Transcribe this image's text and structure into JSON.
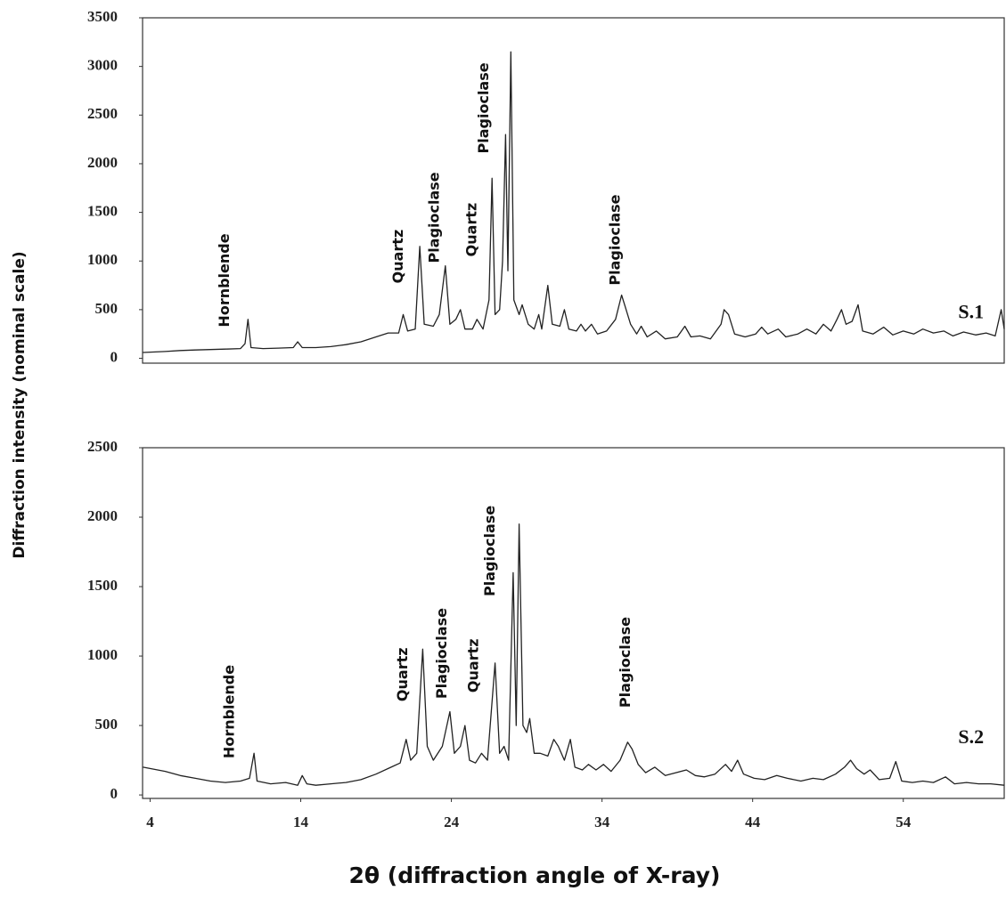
{
  "chart_data": [
    {
      "type": "line",
      "label": "S.1",
      "label_pos": {
        "x": 58.5,
        "y": 460
      },
      "color": "#222222",
      "xlim": [
        3.5,
        60.7
      ],
      "ylim": [
        -50,
        3500
      ],
      "yticks": [
        0,
        500,
        1000,
        1500,
        2000,
        2500,
        3000,
        3500
      ],
      "x": [
        3.53,
        5,
        6,
        7,
        8,
        9,
        10,
        10.3,
        10.5,
        10.7,
        11.5,
        12.5,
        13.5,
        13.8,
        14.1,
        15,
        16,
        17,
        18,
        19,
        19.8,
        20.5,
        20.8,
        21.1,
        21.6,
        21.9,
        22.2,
        22.8,
        23.2,
        23.6,
        23.9,
        24.3,
        24.6,
        24.9,
        25.4,
        25.7,
        26.1,
        26.5,
        26.7,
        26.9,
        27.2,
        27.4,
        27.6,
        27.75,
        27.95,
        28.15,
        28.5,
        28.7,
        29.1,
        29.5,
        29.8,
        30.0,
        30.4,
        30.7,
        31.2,
        31.5,
        31.8,
        32.3,
        32.6,
        32.9,
        33.3,
        33.7,
        34.3,
        34.9,
        35.3,
        35.5,
        35.9,
        36.3,
        36.6,
        37,
        37.6,
        38.2,
        39,
        39.5,
        39.9,
        40.5,
        41.2,
        41.9,
        42.1,
        42.4,
        42.8,
        43.5,
        44.2,
        44.6,
        45,
        45.7,
        46.2,
        47,
        47.6,
        48.2,
        48.7,
        49.2,
        49.6,
        49.9,
        50.2,
        50.6,
        51.0,
        51.3,
        52,
        52.7,
        53.3,
        54,
        54.7,
        55.3,
        56,
        56.7,
        57.3,
        58,
        58.8,
        59.5,
        60.1,
        60.5,
        60.7
      ],
      "values": [
        60,
        70,
        80,
        85,
        90,
        95,
        100,
        150,
        400,
        110,
        100,
        105,
        110,
        170,
        110,
        110,
        120,
        140,
        170,
        220,
        260,
        260,
        450,
        280,
        300,
        1150,
        350,
        330,
        450,
        950,
        350,
        400,
        500,
        300,
        300,
        400,
        300,
        600,
        1850,
        450,
        500,
        1000,
        2300,
        900,
        3150,
        600,
        450,
        550,
        350,
        300,
        450,
        300,
        750,
        350,
        330,
        500,
        300,
        280,
        350,
        280,
        350,
        250,
        280,
        400,
        650,
        550,
        350,
        250,
        330,
        220,
        280,
        200,
        220,
        330,
        220,
        230,
        200,
        350,
        500,
        450,
        250,
        220,
        250,
        320,
        250,
        300,
        220,
        250,
        300,
        250,
        350,
        280,
        400,
        500,
        350,
        380,
        550,
        280,
        250,
        320,
        240,
        280,
        250,
        300,
        260,
        280,
        230,
        270,
        240,
        260,
        230,
        500,
        300
      ],
      "annotations": [
        {
          "text": "Hornblende",
          "x": 8.96,
          "y": 320
        },
        {
          "text": "Quartz",
          "x": 20.5,
          "y": 770
        },
        {
          "text": "Plagioclase",
          "x": 22.9,
          "y": 980
        },
        {
          "text": "Quartz",
          "x": 25.4,
          "y": 1045
        },
        {
          "text": "Plagioclase",
          "x": 26.2,
          "y": 2105
        },
        {
          "text": "Plagioclase",
          "x": 34.9,
          "y": 750
        }
      ]
    },
    {
      "type": "line",
      "label": "S.2",
      "label_pos": {
        "x": 58.5,
        "y": 404
      },
      "color": "#222222",
      "xlim": [
        3.5,
        60.7
      ],
      "ylim": [
        -25,
        2500
      ],
      "yticks": [
        0,
        500,
        1000,
        1500,
        2000,
        2500
      ],
      "xticks": [
        4,
        14,
        24,
        34,
        44,
        54
      ],
      "x": [
        3.53,
        5,
        6,
        7,
        8,
        9,
        10,
        10.6,
        10.9,
        11.1,
        12,
        13,
        13.8,
        14.1,
        14.4,
        15,
        16,
        17,
        18,
        19,
        20,
        20.6,
        21,
        21.3,
        21.7,
        22.1,
        22.4,
        22.8,
        23.4,
        23.9,
        24.2,
        24.6,
        24.9,
        25.2,
        25.6,
        26.0,
        26.4,
        26.9,
        27.2,
        27.5,
        27.8,
        28.1,
        28.3,
        28.5,
        28.75,
        29.0,
        29.2,
        29.5,
        29.9,
        30.4,
        30.8,
        31.1,
        31.5,
        31.9,
        32.2,
        32.7,
        33.1,
        33.6,
        34.1,
        34.6,
        35.2,
        35.7,
        36.0,
        36.4,
        36.9,
        37.5,
        38.2,
        38.9,
        39.6,
        40.2,
        40.8,
        41.5,
        42.2,
        42.6,
        43.0,
        43.4,
        44.1,
        44.8,
        45.6,
        46.3,
        47.2,
        48,
        48.7,
        49.5,
        50.1,
        50.5,
        50.9,
        51.4,
        51.8,
        52.4,
        53.1,
        53.5,
        53.9,
        54.6,
        55.3,
        56,
        56.8,
        57.4,
        58.2,
        59,
        59.8,
        60.7
      ],
      "values": [
        200,
        170,
        140,
        120,
        100,
        90,
        100,
        120,
        300,
        100,
        80,
        90,
        70,
        140,
        80,
        70,
        80,
        90,
        110,
        150,
        200,
        230,
        400,
        250,
        300,
        1050,
        350,
        250,
        350,
        600,
        300,
        350,
        500,
        250,
        230,
        300,
        250,
        950,
        300,
        350,
        250,
        1600,
        500,
        1950,
        500,
        450,
        550,
        300,
        300,
        280,
        400,
        350,
        250,
        400,
        200,
        180,
        220,
        180,
        220,
        170,
        250,
        380,
        330,
        220,
        160,
        200,
        140,
        160,
        180,
        140,
        130,
        150,
        220,
        170,
        250,
        150,
        120,
        110,
        140,
        120,
        100,
        120,
        110,
        150,
        200,
        250,
        190,
        150,
        180,
        110,
        120,
        240,
        100,
        90,
        100,
        90,
        130,
        80,
        90,
        80,
        80,
        70
      ],
      "annotations": [
        {
          "text": "Hornblende",
          "x": 9.3,
          "y": 263
        },
        {
          "text": "Quartz",
          "x": 20.8,
          "y": 673
        },
        {
          "text": "Plagioclase",
          "x": 23.4,
          "y": 692
        },
        {
          "text": "Quartz",
          "x": 25.5,
          "y": 737
        },
        {
          "text": "Plagioclase",
          "x": 26.6,
          "y": 1430
        },
        {
          "text": "Plagioclase",
          "x": 35.6,
          "y": 628
        }
      ]
    }
  ],
  "xlabel": "2θ (diffraction angle of X-ray)",
  "ylabel": "Diffraction intensity (nominal scale)"
}
